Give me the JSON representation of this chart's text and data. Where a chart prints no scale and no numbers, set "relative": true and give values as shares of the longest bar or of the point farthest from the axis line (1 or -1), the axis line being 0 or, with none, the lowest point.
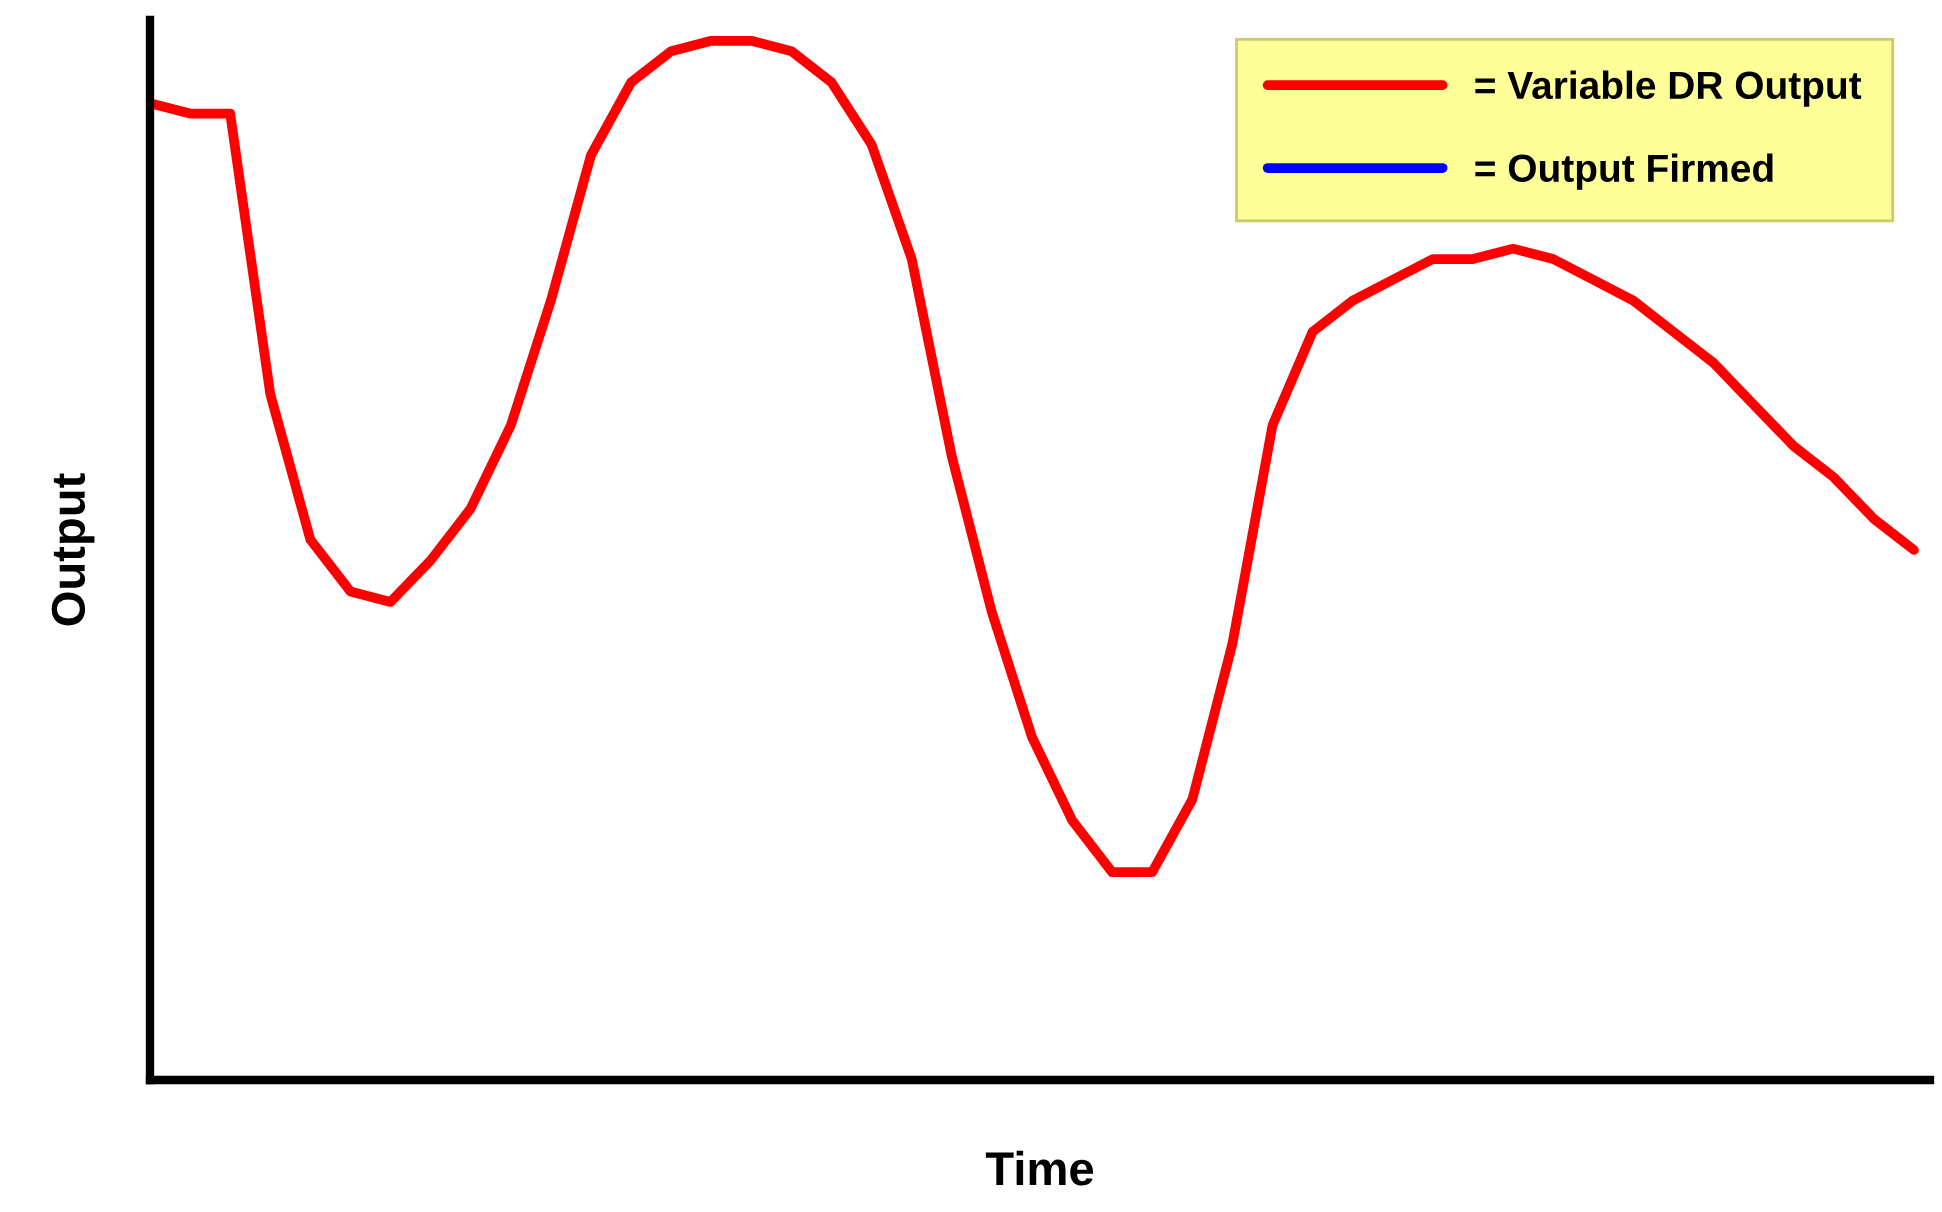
{
  "chart_data": {
    "type": "line",
    "relative": true,
    "xlabel": "Time",
    "ylabel": "Output",
    "categories": [
      null,
      null,
      null,
      null,
      null,
      null,
      null,
      null,
      null,
      null,
      null,
      null,
      null,
      null,
      null,
      null,
      null,
      null,
      null,
      null,
      null,
      null,
      null,
      null,
      null,
      null,
      null,
      null,
      null,
      null,
      null,
      null,
      null,
      null,
      null,
      null,
      null,
      null,
      null,
      null,
      null,
      null,
      null,
      null,
      null
    ],
    "series": [
      {
        "name": "= Variable DR Output",
        "color": "#ff0000",
        "values": [
          0.94,
          0.93,
          0.93,
          0.66,
          0.52,
          0.47,
          0.46,
          0.5,
          0.55,
          0.63,
          0.75,
          0.89,
          0.96,
          0.99,
          1,
          1,
          0.99,
          0.96,
          0.9,
          0.79,
          0.6,
          0.45,
          0.33,
          0.25,
          0.2,
          0.2,
          0.27,
          0.42,
          0.63,
          0.72,
          0.75,
          0.77,
          0.79,
          0.79,
          0.8,
          0.79,
          0.77,
          0.75,
          0.72,
          0.69,
          0.65,
          0.61,
          0.58,
          0.54,
          0.51
        ]
      },
      {
        "name": "= Output Firmed",
        "color": "#0000ff",
        "values": [
          null,
          null,
          null,
          null,
          null,
          null,
          null,
          null,
          null,
          null,
          null,
          null,
          null,
          null,
          null,
          null,
          null,
          null,
          null,
          null,
          null,
          null,
          null,
          null,
          null,
          null,
          null,
          null,
          null,
          null,
          null,
          null,
          null,
          null,
          null,
          null,
          null,
          null,
          null,
          null,
          null,
          null,
          null,
          null,
          null
        ]
      }
    ],
    "legend": "top right",
    "grid": false,
    "marker": "none",
    "line_style": "solid"
  }
}
